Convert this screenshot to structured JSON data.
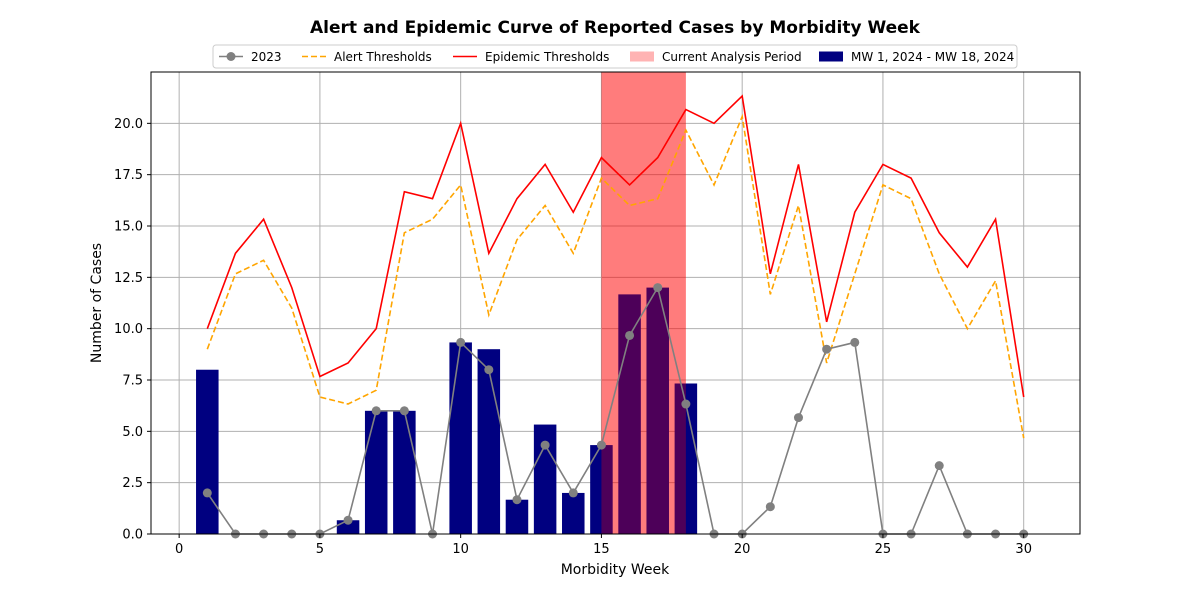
{
  "chart_data": {
    "type": "bar",
    "title": "Alert and Epidemic Curve of Reported Cases by Morbidity Week",
    "xlabel": "Morbidity Week",
    "ylabel": "Number of Cases",
    "xlim": [
      -1,
      32
    ],
    "ylim": [
      0,
      22.5
    ],
    "xticks": [
      0,
      5,
      10,
      15,
      20,
      25,
      30
    ],
    "xtick_labels": [
      "0",
      "5",
      "10",
      "15",
      "20",
      "25",
      "30"
    ],
    "yticks": [
      0,
      2.5,
      5,
      7.5,
      10,
      12.5,
      15,
      17.5,
      20
    ],
    "ytick_labels": [
      "0.0",
      "2.5",
      "5.0",
      "7.5",
      "10.0",
      "12.5",
      "15.0",
      "17.5",
      "20.0"
    ],
    "grid": true,
    "legend_position": "top-center",
    "highlight_span": {
      "name": "Current Analysis Period",
      "x_start": 15,
      "x_end": 18,
      "color": "#ff0000",
      "opacity": 0.3
    },
    "bars": {
      "name": "MW 1, 2024 - MW 18, 2024",
      "color": "#000080",
      "x": [
        1,
        2,
        3,
        4,
        5,
        6,
        7,
        8,
        9,
        10,
        11,
        12,
        13,
        14,
        15,
        16,
        17,
        18
      ],
      "values": [
        8,
        0,
        0,
        0,
        0,
        0.67,
        6,
        6,
        0,
        9.33,
        9,
        1.67,
        5.33,
        2,
        4.33,
        11.67,
        12,
        7.33
      ]
    },
    "series": [
      {
        "name": "2023",
        "style": "line-marker",
        "color": "#808080",
        "x": [
          1,
          2,
          3,
          4,
          5,
          6,
          7,
          8,
          9,
          10,
          11,
          12,
          13,
          14,
          15,
          16,
          17,
          18,
          19,
          20,
          21,
          22,
          23,
          24,
          25,
          26,
          27,
          28,
          29,
          30
        ],
        "values": [
          2,
          0,
          0,
          0,
          0,
          0.67,
          6,
          6,
          0,
          9.33,
          8,
          1.67,
          4.33,
          2,
          4.33,
          9.67,
          12,
          6.33,
          0,
          0,
          1.33,
          5.67,
          9,
          9.33,
          0,
          0,
          3.33,
          0,
          0,
          0
        ]
      },
      {
        "name": "Alert Thresholds",
        "style": "dashed",
        "color": "#ffa500",
        "x": [
          1,
          2,
          3,
          4,
          5,
          6,
          7,
          8,
          9,
          10,
          11,
          12,
          13,
          14,
          15,
          16,
          17,
          18,
          19,
          20,
          21,
          22,
          23,
          24,
          25,
          26,
          27,
          28,
          29,
          30
        ],
        "values": [
          9,
          12.67,
          13.33,
          11,
          6.67,
          6.33,
          7,
          14.67,
          15.33,
          17,
          10.67,
          14.33,
          16,
          13.67,
          17.33,
          16,
          16.33,
          19.67,
          17,
          20.33,
          11.67,
          16,
          8.33,
          12.67,
          17,
          16.33,
          12.67,
          10,
          12.33,
          4.67
        ]
      },
      {
        "name": "Epidemic Thresholds",
        "style": "solid",
        "color": "#ff0000",
        "x": [
          1,
          2,
          3,
          4,
          5,
          6,
          7,
          8,
          9,
          10,
          11,
          12,
          13,
          14,
          15,
          16,
          17,
          18,
          19,
          20,
          21,
          22,
          23,
          24,
          25,
          26,
          27,
          28,
          29,
          30
        ],
        "values": [
          10,
          13.67,
          15.33,
          12,
          7.67,
          8.33,
          10,
          16.67,
          16.33,
          20,
          13.67,
          16.33,
          18,
          15.67,
          18.33,
          17,
          18.33,
          20.67,
          20,
          21.33,
          12.67,
          18,
          10.33,
          15.67,
          18,
          17.33,
          14.67,
          13,
          15.33,
          6.67
        ]
      }
    ],
    "legend": [
      {
        "label": "2023",
        "kind": "line-marker",
        "color": "#808080"
      },
      {
        "label": "Alert Thresholds",
        "kind": "dashed",
        "color": "#ffa500"
      },
      {
        "label": "Epidemic Thresholds",
        "kind": "solid",
        "color": "#ff0000"
      },
      {
        "label": "Current Analysis Period",
        "kind": "patch",
        "color": "#ffb3b3"
      },
      {
        "label": "MW 1, 2024 - MW 18, 2024",
        "kind": "patch",
        "color": "#000080"
      }
    ]
  }
}
